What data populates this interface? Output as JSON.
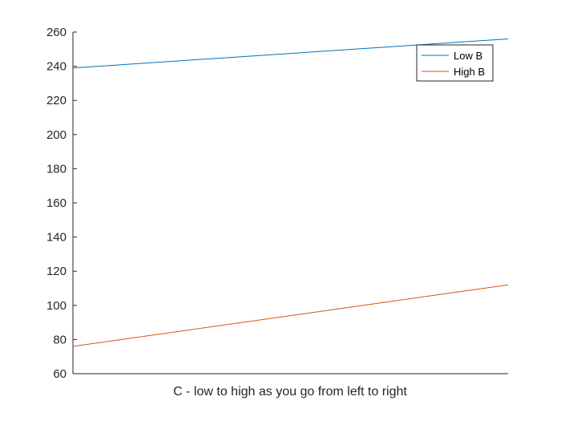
{
  "chart_data": {
    "type": "line",
    "title": "",
    "xlabel": "C - low to high as you go from left to right",
    "ylabel": "",
    "ylim": [
      60,
      260
    ],
    "yticks": [
      60,
      80,
      100,
      120,
      140,
      160,
      180,
      200,
      220,
      240,
      260
    ],
    "xticks": [],
    "grid": false,
    "legend_position": "top-right",
    "series": [
      {
        "name": "Low B",
        "color": "#0072BD",
        "x": [
          0,
          1
        ],
        "values": [
          239,
          256
        ]
      },
      {
        "name": "High B",
        "color": "#D95319",
        "x": [
          0,
          1
        ],
        "values": [
          76,
          112
        ]
      }
    ]
  }
}
